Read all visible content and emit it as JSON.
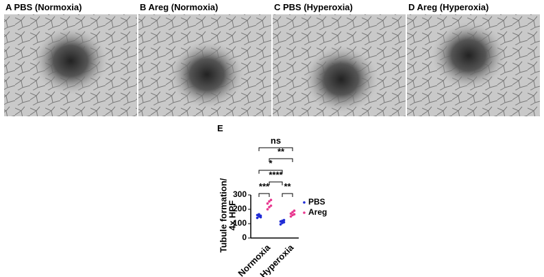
{
  "panels": [
    {
      "title": "A PBS (Normoxia)"
    },
    {
      "title": "B Areg (Normoxia)"
    },
    {
      "title": "C PBS (Hyperoxia)"
    },
    {
      "title": "D Areg (Hyperoxia)"
    }
  ],
  "chart_data": {
    "type": "scatter",
    "panel": "E",
    "ylabel": [
      "Tubule formation/",
      "4x HPF"
    ],
    "categories": [
      "Normoxia",
      "Hyperoxia"
    ],
    "series": [
      {
        "name": "PBS",
        "color": "#1f2bd6",
        "values": [
          [
            140,
            150,
            155,
            160,
            165,
            145
          ],
          [
            95,
            105,
            110,
            115,
            120,
            125
          ]
        ]
      },
      {
        "name": "Areg",
        "color": "#e8388f",
        "values": [
          [
            200,
            215,
            225,
            240,
            255,
            265
          ],
          [
            150,
            160,
            165,
            170,
            180,
            190
          ]
        ]
      }
    ],
    "ylim": [
      0,
      300
    ],
    "yticks": [
      0,
      100,
      200,
      300
    ],
    "annotations": [
      "ns",
      "**",
      "*",
      "****",
      "***",
      "**"
    ]
  }
}
